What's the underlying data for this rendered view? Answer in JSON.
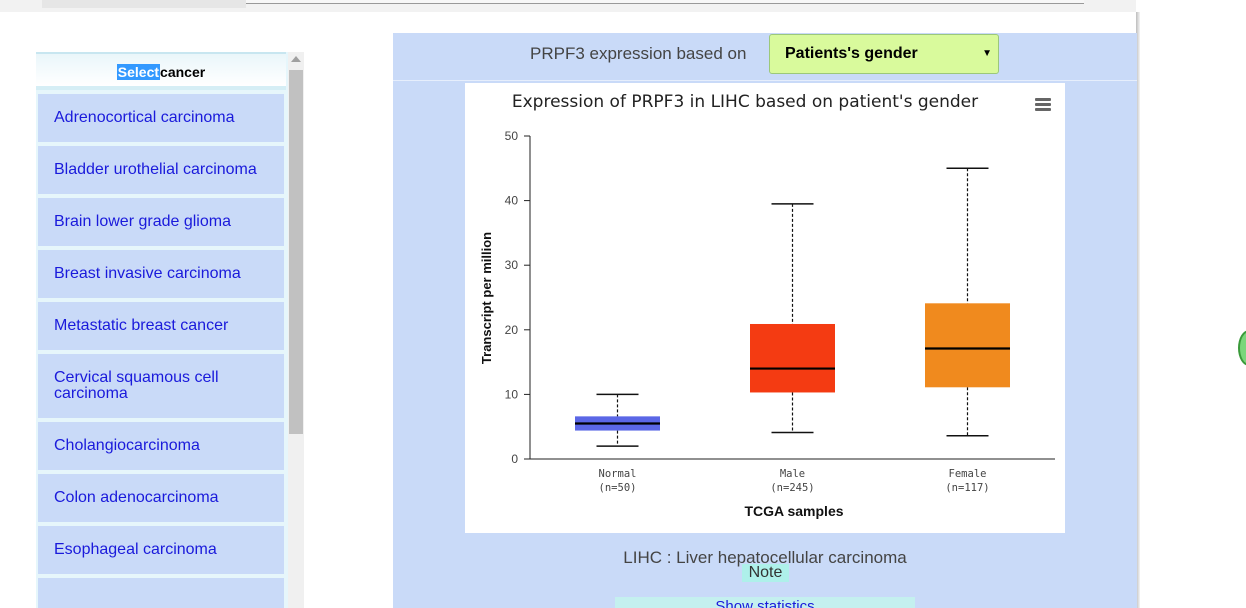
{
  "sidebar": {
    "header_select": "Select",
    "header_rest": "cancer",
    "items": [
      {
        "label": "Adrenocortical carcinoma"
      },
      {
        "label": "Bladder urothelial carcinoma"
      },
      {
        "label": "Brain lower grade glioma"
      },
      {
        "label": "Breast invasive carcinoma"
      },
      {
        "label": "Metastatic breast cancer"
      },
      {
        "label": "Cervical squamous cell carcinoma"
      },
      {
        "label": "Cholangiocarcinoma"
      },
      {
        "label": "Colon adenocarcinoma"
      },
      {
        "label": "Esophageal carcinoma"
      }
    ]
  },
  "main": {
    "expression_label": "PRPF3 expression based on",
    "selected_option": "Patients's gender",
    "caption": "LIHC : Liver hepatocellular carcinoma",
    "note_label": "Note",
    "stats_label": "Show statistics"
  },
  "colors": {
    "panel_bg": "#c9daf8",
    "select_bg": "#d9fa9c"
  },
  "chart_data": {
    "type": "box",
    "title": "Expression of PRPF3 in LIHC based on patient's gender",
    "xlabel": "TCGA samples",
    "ylabel": "Transcript per million",
    "ylim": [
      0,
      50
    ],
    "yticks": [
      0,
      10,
      20,
      30,
      40,
      50
    ],
    "grid": false,
    "legend": "none",
    "categories": [
      {
        "name": "Normal",
        "n": "(n=50)",
        "color": "#5b67e6",
        "whisker_low": 2,
        "q1": 4.4,
        "median": 5.5,
        "q3": 6.6,
        "whisker_high": 10
      },
      {
        "name": "Male",
        "n": "(n=245)",
        "color": "#f43b12",
        "whisker_low": 4.1,
        "q1": 10.3,
        "median": 14,
        "q3": 20.9,
        "whisker_high": 39.5
      },
      {
        "name": "Female",
        "n": "(n=117)",
        "color": "#f08a1e",
        "whisker_low": 3.6,
        "q1": 11.1,
        "median": 17.1,
        "q3": 24.1,
        "whisker_high": 45
      }
    ]
  }
}
